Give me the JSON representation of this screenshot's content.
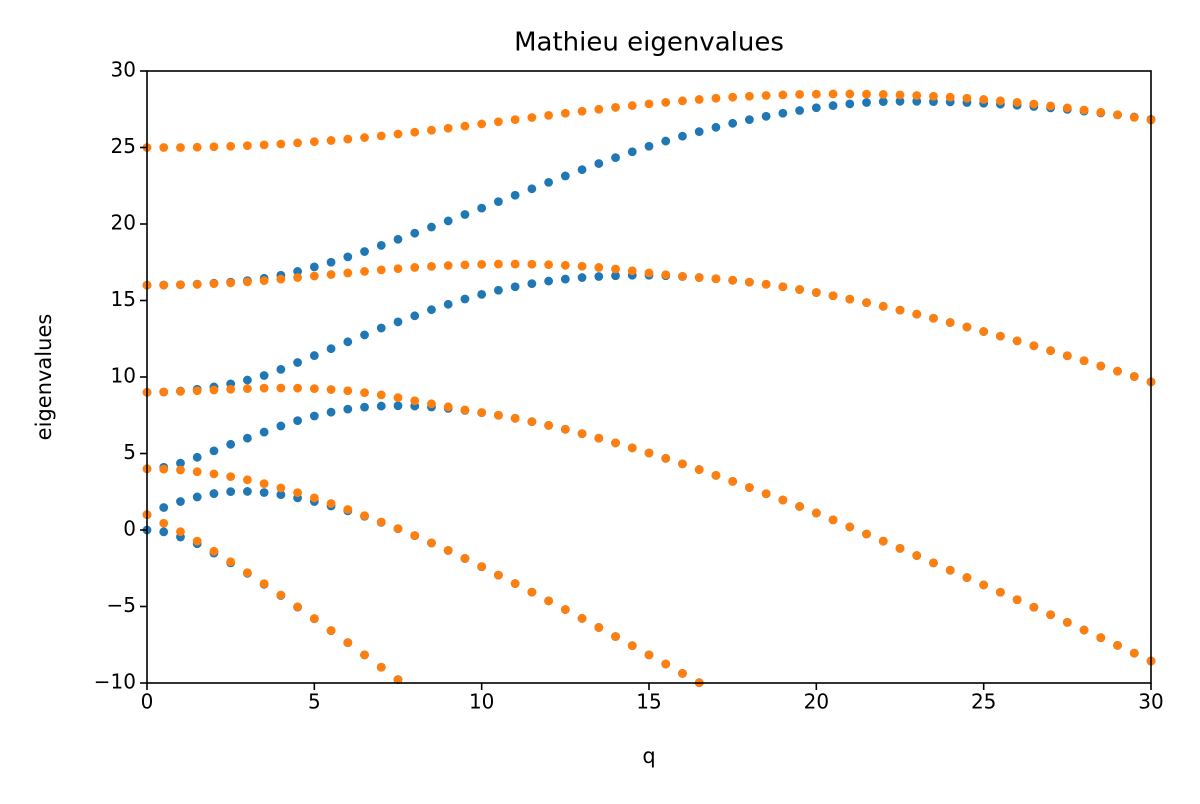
{
  "chart_data": {
    "type": "scatter",
    "title": "Mathieu eigenvalues",
    "x_label": "q",
    "y_label": "eigenvalues",
    "xlim": [
      0,
      30
    ],
    "ylim": [
      -10,
      30
    ],
    "xticks": [
      0,
      5,
      10,
      15,
      20,
      25,
      30
    ],
    "yticks": [
      {
        "value": -10,
        "label": "−10"
      },
      {
        "value": -5,
        "label": "−5"
      },
      0,
      5,
      10,
      15,
      20,
      25,
      30
    ],
    "x": [
      0,
      0.5,
      1,
      1.5,
      2,
      2.5,
      3,
      3.5,
      4,
      4.5,
      5,
      5.5,
      6,
      6.5,
      7,
      7.5,
      8,
      8.5,
      9,
      9.5,
      10,
      10.5,
      11,
      11.5,
      12,
      12.5,
      13,
      13.5,
      14,
      14.5,
      15,
      15.5,
      16,
      16.5,
      17,
      17.5,
      18,
      18.5,
      19,
      19.5,
      20,
      20.5,
      21,
      21.5,
      22,
      22.5,
      23,
      23.5,
      24,
      24.5,
      25,
      25.5,
      26,
      26.5,
      27,
      27.5,
      28,
      28.5,
      29,
      29.5,
      30
    ],
    "series": [
      {
        "color": "#1f77b4",
        "values": [
          0,
          -0.12,
          -0.46,
          -0.9,
          -1.51,
          -2.15,
          -2.83,
          -3.55,
          -4.28,
          -5.04,
          -5.8,
          -6.58,
          -7.36,
          -8.16,
          -8.97,
          -9.78,
          null,
          null,
          null,
          null,
          null,
          null,
          null,
          null,
          null,
          null,
          null,
          null,
          null,
          null,
          null,
          null,
          null,
          null,
          null,
          null,
          null,
          null,
          null,
          null,
          null,
          null,
          null,
          null,
          null,
          null,
          null,
          null,
          null,
          null,
          null,
          null,
          null,
          null,
          null,
          null,
          null,
          null,
          null,
          null,
          null
        ]
      },
      {
        "color": "#1f77b4",
        "values": [
          1,
          1.47,
          1.86,
          2.16,
          2.38,
          2.51,
          2.52,
          2.45,
          2.31,
          2.1,
          1.86,
          1.57,
          1.25,
          0.9,
          0.5,
          0.08,
          -0.37,
          -0.85,
          -1.34,
          -1.86,
          -2.4,
          -2.95,
          -3.5,
          -4.06,
          -4.63,
          -5.2,
          -5.78,
          -6.37,
          -6.96,
          -7.56,
          -8.16,
          -8.76,
          -9.37,
          -9.98,
          null,
          null,
          null,
          null,
          null,
          null,
          null,
          null,
          null,
          null,
          null,
          null,
          null,
          null,
          null,
          null,
          null,
          null,
          null,
          null,
          null,
          null,
          null,
          null,
          null,
          null,
          null
        ]
      },
      {
        "color": "#1f77b4",
        "values": [
          4,
          4.1,
          4.37,
          4.75,
          5.17,
          5.6,
          6,
          6.4,
          6.8,
          7.15,
          7.45,
          7.7,
          7.9,
          8.03,
          8.1,
          8.12,
          8.1,
          8.04,
          7.95,
          7.82,
          7.67,
          7.5,
          7.3,
          7.08,
          6.84,
          6.58,
          6.3,
          6,
          5.69,
          5.37,
          5.03,
          4.68,
          4.32,
          3.95,
          3.57,
          3.18,
          2.78,
          2.37,
          1.96,
          1.54,
          1.11,
          0.66,
          0.2,
          -0.26,
          -0.73,
          -1.2,
          -1.67,
          -2.15,
          -2.63,
          -3.11,
          -3.59,
          -4.07,
          -4.56,
          -5.05,
          -5.54,
          -6.04,
          -6.54,
          -7.04,
          -7.54,
          -8.05,
          -8.56
        ]
      },
      {
        "color": "#1f77b4",
        "values": [
          9,
          9.02,
          9.08,
          9.2,
          9.35,
          9.55,
          9.8,
          10.1,
          10.5,
          10.95,
          11.4,
          11.85,
          12.3,
          12.75,
          13.2,
          13.6,
          14,
          14.4,
          14.75,
          15.1,
          15.4,
          15.67,
          15.9,
          16.1,
          16.27,
          16.4,
          16.5,
          16.57,
          16.62,
          16.65,
          16.65,
          16.62,
          16.57,
          16.5,
          16.42,
          16.32,
          16.2,
          16.06,
          15.9,
          15.72,
          15.52,
          15.31,
          15.09,
          14.86,
          14.62,
          14.37,
          14.11,
          13.84,
          13.56,
          13.27,
          12.97,
          12.67,
          12.36,
          12.04,
          11.72,
          11.39,
          11.06,
          10.72,
          10.38,
          10.03,
          9.68
        ]
      },
      {
        "color": "#1f77b4",
        "values": [
          16,
          16.01,
          16.03,
          16.07,
          16.13,
          16.2,
          16.3,
          16.45,
          16.65,
          16.9,
          17.2,
          17.5,
          17.85,
          18.2,
          18.6,
          19,
          19.4,
          19.8,
          20.2,
          20.62,
          21.04,
          21.46,
          21.88,
          22.3,
          22.72,
          23.14,
          23.55,
          23.95,
          24.34,
          24.72,
          25.08,
          25.42,
          25.74,
          26.04,
          26.32,
          26.58,
          26.82,
          27.04,
          27.24,
          27.42,
          27.6,
          27.74,
          27.85,
          27.94,
          28,
          28.02,
          28.02,
          28,
          27.98,
          27.94,
          27.89,
          27.83,
          27.76,
          27.68,
          27.59,
          27.49,
          27.38,
          27.26,
          27.13,
          26.99,
          26.84
        ]
      },
      {
        "color": "#ff7f0e",
        "values": [
          1,
          0.44,
          -0.11,
          -0.73,
          -1.39,
          -2.08,
          -2.79,
          -3.51,
          -4.25,
          -5.02,
          -5.79,
          -6.57,
          -7.36,
          -8.16,
          -8.97,
          -9.78,
          null,
          null,
          null,
          null,
          null,
          null,
          null,
          null,
          null,
          null,
          null,
          null,
          null,
          null,
          null,
          null,
          null,
          null,
          null,
          null,
          null,
          null,
          null,
          null,
          null,
          null,
          null,
          null,
          null,
          null,
          null,
          null,
          null,
          null,
          null,
          null,
          null,
          null,
          null,
          null,
          null,
          null,
          null,
          null,
          null
        ]
      },
      {
        "color": "#ff7f0e",
        "values": [
          4,
          3.98,
          3.92,
          3.81,
          3.67,
          3.49,
          3.28,
          3.03,
          2.75,
          2.44,
          2.1,
          1.73,
          1.34,
          0.94,
          0.52,
          0.09,
          -0.36,
          -0.84,
          -1.33,
          -1.85,
          -2.39,
          -2.95,
          -3.5,
          -4.06,
          -4.63,
          -5.2,
          -5.78,
          -6.37,
          -6.96,
          -7.56,
          -8.16,
          -8.76,
          -9.37,
          -9.98,
          null,
          null,
          null,
          null,
          null,
          null,
          null,
          null,
          null,
          null,
          null,
          null,
          null,
          null,
          null,
          null,
          null,
          null,
          null,
          null,
          null,
          null,
          null,
          null,
          null,
          null,
          null
        ]
      },
      {
        "color": "#ff7f0e",
        "values": [
          9,
          9.02,
          9.06,
          9.1,
          9.15,
          9.2,
          9.24,
          9.27,
          9.28,
          9.27,
          9.24,
          9.18,
          9.1,
          8.98,
          8.83,
          8.65,
          8.45,
          8.25,
          8.05,
          7.85,
          7.68,
          7.5,
          7.3,
          7.08,
          6.84,
          6.58,
          6.3,
          6,
          5.69,
          5.37,
          5.03,
          4.68,
          4.32,
          3.95,
          3.57,
          3.18,
          2.78,
          2.37,
          1.96,
          1.54,
          1.11,
          0.66,
          0.2,
          -0.26,
          -0.73,
          -1.2,
          -1.67,
          -2.15,
          -2.63,
          -3.11,
          -3.59,
          -4.07,
          -4.56,
          -5.05,
          -5.54,
          -6.04,
          -6.54,
          -7.04,
          -7.54,
          -8.05,
          -8.56
        ]
      },
      {
        "color": "#ff7f0e",
        "values": [
          16,
          16,
          16.03,
          16.05,
          16.1,
          16.15,
          16.22,
          16.3,
          16.4,
          16.5,
          16.6,
          16.7,
          16.8,
          16.9,
          17,
          17.08,
          17.16,
          17.23,
          17.29,
          17.33,
          17.36,
          17.38,
          17.38,
          17.37,
          17.34,
          17.3,
          17.24,
          17.16,
          17.06,
          16.94,
          16.8,
          16.68,
          16.58,
          16.5,
          16.42,
          16.32,
          16.2,
          16.06,
          15.9,
          15.72,
          15.52,
          15.31,
          15.09,
          14.86,
          14.62,
          14.37,
          14.11,
          13.84,
          13.56,
          13.27,
          12.97,
          12.67,
          12.36,
          12.04,
          11.72,
          11.39,
          11.06,
          10.72,
          10.38,
          10.03,
          9.68
        ]
      },
      {
        "color": "#ff7f0e",
        "values": [
          25,
          25,
          25,
          25.02,
          25.05,
          25.08,
          25.12,
          25.17,
          25.23,
          25.3,
          25.38,
          25.46,
          25.55,
          25.65,
          25.76,
          25.88,
          26,
          26.13,
          26.26,
          26.4,
          26.54,
          26.68,
          26.82,
          26.96,
          27.1,
          27.24,
          27.37,
          27.5,
          27.62,
          27.74,
          27.85,
          27.95,
          28.05,
          28.14,
          28.22,
          28.29,
          28.35,
          28.4,
          28.44,
          28.47,
          28.49,
          28.5,
          28.5,
          28.49,
          28.47,
          28.44,
          28.4,
          28.35,
          28.29,
          28.22,
          28.14,
          28.05,
          27.95,
          27.84,
          27.72,
          27.59,
          27.45,
          27.3,
          27.14,
          26.97,
          26.8
        ]
      }
    ]
  }
}
